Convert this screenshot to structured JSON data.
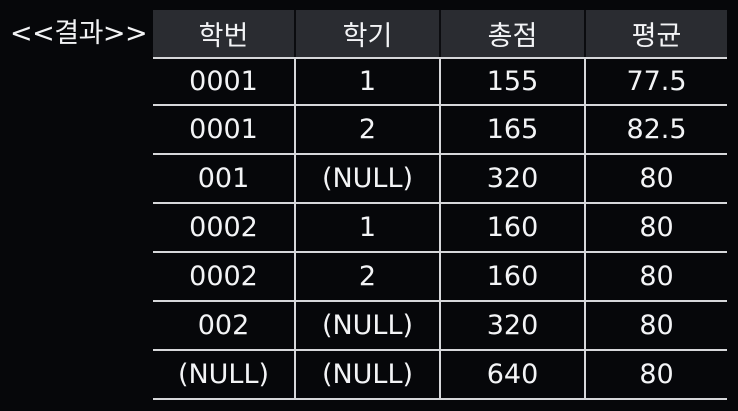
{
  "result_label": "<<결과>>",
  "table": {
    "headers": [
      "학번",
      "학기",
      "총점",
      "평균"
    ],
    "rows": [
      [
        "0001",
        "1",
        "155",
        "77.5"
      ],
      [
        "0001",
        "2",
        "165",
        "82.5"
      ],
      [
        "001",
        "(NULL)",
        "320",
        "80"
      ],
      [
        "0002",
        "1",
        "160",
        "80"
      ],
      [
        "0002",
        "2",
        "160",
        "80"
      ],
      [
        "002",
        "(NULL)",
        "320",
        "80"
      ],
      [
        "(NULL)",
        "(NULL)",
        "640",
        "80"
      ]
    ]
  }
}
